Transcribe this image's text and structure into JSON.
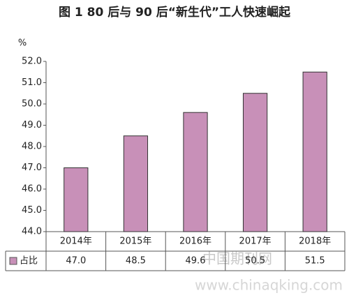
{
  "chart_data": {
    "type": "bar",
    "title": "图 1 80 后与 90 后“新生代”工人快速崛起",
    "y_label": "%",
    "categories": [
      "2014年",
      "2015年",
      "2016年",
      "2017年",
      "2018年"
    ],
    "series": [
      {
        "name": "占比",
        "color": "#c890b8",
        "values": [
          47.0,
          48.5,
          49.6,
          50.5,
          51.5
        ],
        "value_labels": [
          "47.0",
          "48.5",
          "49.6",
          "50.5",
          "51.5"
        ]
      }
    ],
    "ylim": [
      44,
      52
    ],
    "yticks": [
      {
        "value": 44,
        "label": "44.0"
      },
      {
        "value": 45,
        "label": "45.0"
      },
      {
        "value": 46,
        "label": "46.0"
      },
      {
        "value": 47,
        "label": "47.0"
      },
      {
        "value": 48,
        "label": "48.0"
      },
      {
        "value": 49,
        "label": "49.0"
      },
      {
        "value": 50,
        "label": "50.0"
      },
      {
        "value": 51,
        "label": "51.0"
      },
      {
        "value": 52,
        "label": "52.0"
      }
    ],
    "grid": false,
    "watermark": [
      "中国期刊网",
      "www.chinaqking.com"
    ]
  }
}
